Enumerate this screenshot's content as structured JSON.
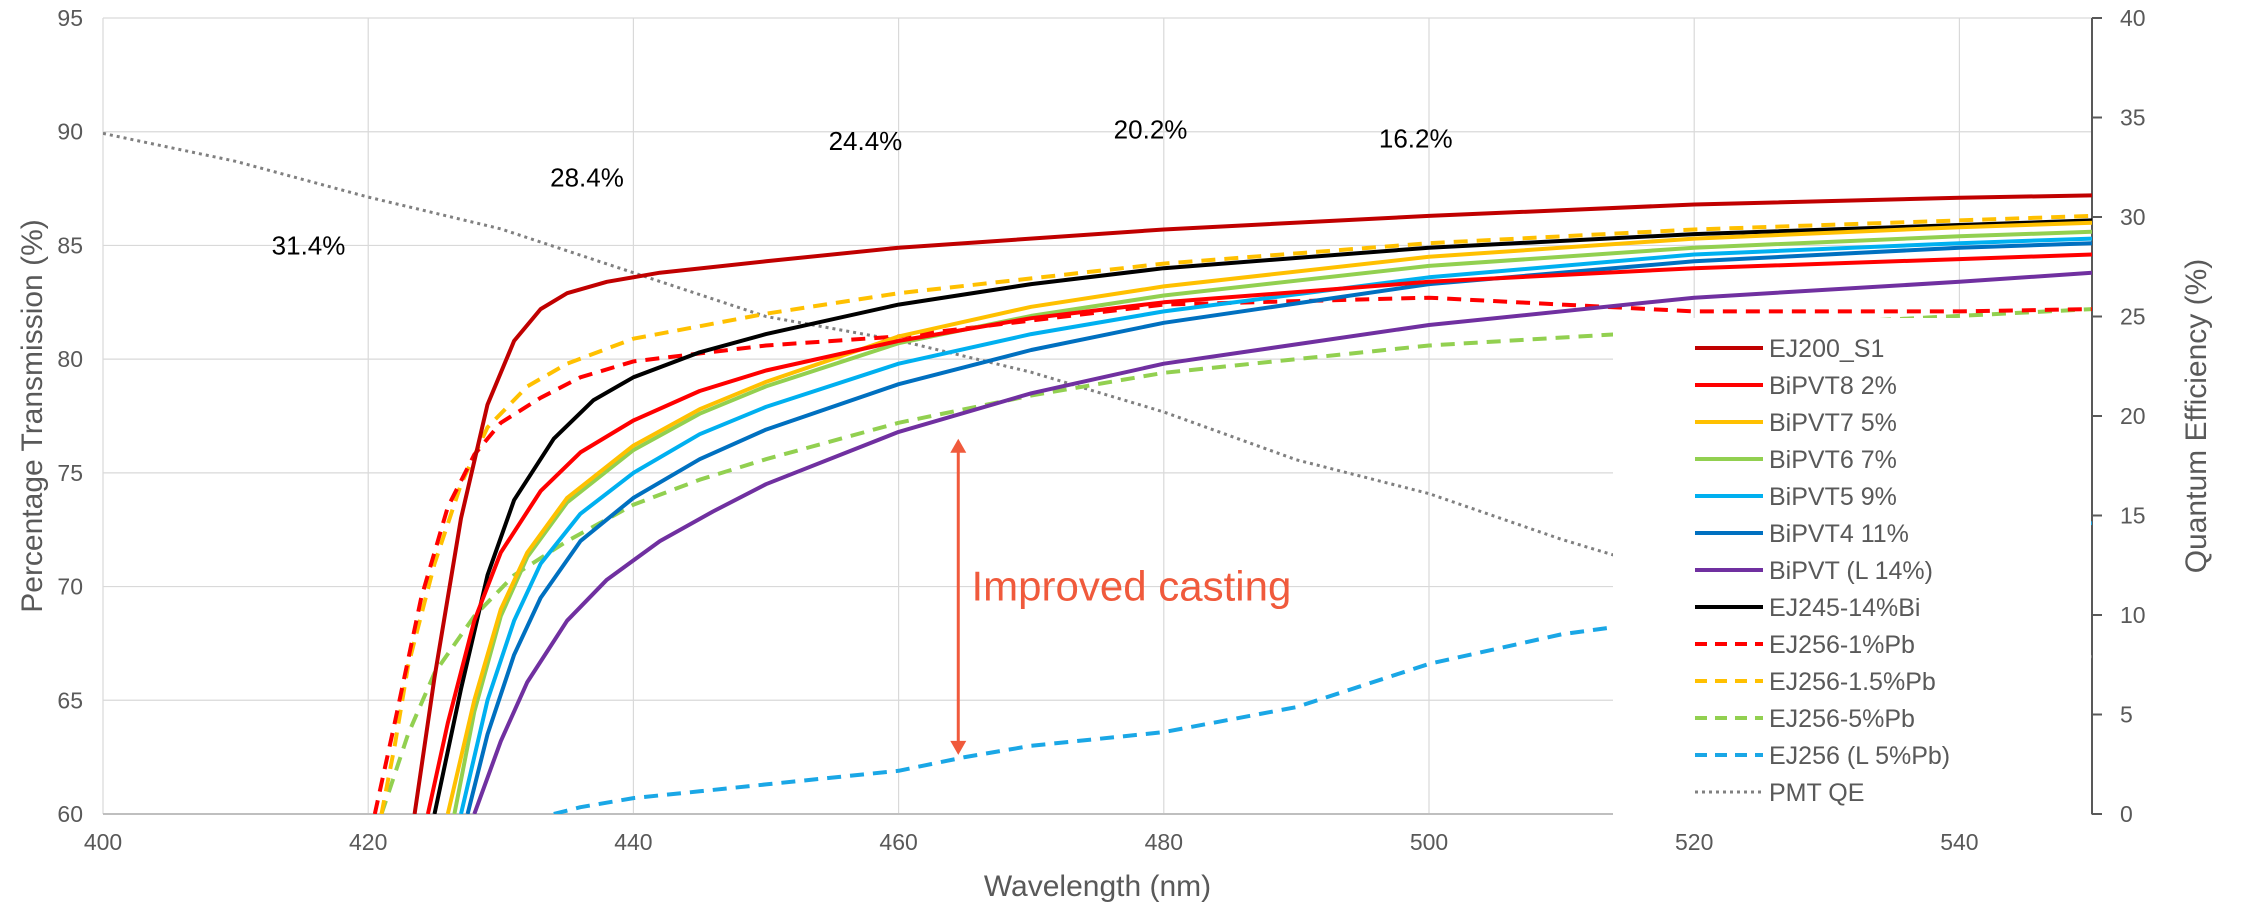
{
  "chart_data": {
    "type": "line",
    "title": "",
    "xlabel": "Wavelength (nm)",
    "ylabel": "Percentage Transmission (%)",
    "y2label": "Quantum Efficiency (%)",
    "xlim": [
      400,
      550
    ],
    "ylim": [
      60,
      95
    ],
    "y2lim": [
      0,
      40
    ],
    "x_ticks": [
      400,
      420,
      440,
      460,
      480,
      500,
      520,
      540
    ],
    "y_ticks": [
      60,
      65,
      70,
      75,
      80,
      85,
      90,
      95
    ],
    "y2_ticks": [
      0,
      5,
      10,
      15,
      20,
      25,
      30,
      35,
      40
    ],
    "grid": true,
    "legend_position": "right",
    "series": [
      {
        "name": "EJ200_S1",
        "color": "#C00000",
        "dash": "solid",
        "axis": "left",
        "points": [
          [
            423.5,
            60
          ],
          [
            425,
            66
          ],
          [
            427,
            73
          ],
          [
            429,
            78
          ],
          [
            431,
            80.8
          ],
          [
            433,
            82.2
          ],
          [
            435,
            82.9
          ],
          [
            438,
            83.4
          ],
          [
            442,
            83.8
          ],
          [
            450,
            84.3
          ],
          [
            460,
            84.9
          ],
          [
            480,
            85.7
          ],
          [
            500,
            86.3
          ],
          [
            520,
            86.8
          ],
          [
            540,
            87.1
          ],
          [
            550,
            87.2
          ]
        ]
      },
      {
        "name": "BiPVT8 2%",
        "color": "#FF0000",
        "dash": "solid",
        "axis": "left",
        "points": [
          [
            424.5,
            60
          ],
          [
            426,
            64
          ],
          [
            428,
            68.5
          ],
          [
            430,
            71.5
          ],
          [
            433,
            74.2
          ],
          [
            436,
            75.9
          ],
          [
            440,
            77.3
          ],
          [
            445,
            78.6
          ],
          [
            450,
            79.5
          ],
          [
            460,
            80.8
          ],
          [
            470,
            81.8
          ],
          [
            480,
            82.5
          ],
          [
            500,
            83.4
          ],
          [
            520,
            84
          ],
          [
            540,
            84.4
          ],
          [
            550,
            84.6
          ]
        ]
      },
      {
        "name": "BiPVT7 5%",
        "color": "#FFC000",
        "dash": "solid",
        "axis": "left",
        "points": [
          [
            426,
            60
          ],
          [
            428,
            65
          ],
          [
            430,
            69
          ],
          [
            432,
            71.5
          ],
          [
            435,
            73.9
          ],
          [
            440,
            76.2
          ],
          [
            445,
            77.8
          ],
          [
            450,
            79
          ],
          [
            460,
            81
          ],
          [
            470,
            82.3
          ],
          [
            480,
            83.2
          ],
          [
            500,
            84.5
          ],
          [
            520,
            85.3
          ],
          [
            540,
            85.8
          ],
          [
            550,
            86
          ]
        ]
      },
      {
        "name": "BiPVT6 7%",
        "color": "#92D050",
        "dash": "solid",
        "axis": "left",
        "points": [
          [
            426.5,
            60
          ],
          [
            428,
            64.5
          ],
          [
            430,
            68.7
          ],
          [
            432,
            71.3
          ],
          [
            435,
            73.7
          ],
          [
            440,
            76
          ],
          [
            445,
            77.6
          ],
          [
            450,
            78.8
          ],
          [
            460,
            80.7
          ],
          [
            470,
            81.9
          ],
          [
            480,
            82.8
          ],
          [
            500,
            84.1
          ],
          [
            520,
            84.9
          ],
          [
            540,
            85.4
          ],
          [
            550,
            85.6
          ]
        ]
      },
      {
        "name": "BiPVT5 9%",
        "color": "#00B0F0",
        "dash": "solid",
        "axis": "left",
        "points": [
          [
            427,
            60
          ],
          [
            429,
            65
          ],
          [
            431,
            68.5
          ],
          [
            433,
            71
          ],
          [
            436,
            73.2
          ],
          [
            440,
            75
          ],
          [
            445,
            76.7
          ],
          [
            450,
            77.9
          ],
          [
            460,
            79.8
          ],
          [
            470,
            81.1
          ],
          [
            480,
            82.1
          ],
          [
            500,
            83.6
          ],
          [
            520,
            84.6
          ],
          [
            540,
            85.1
          ],
          [
            550,
            85.3
          ]
        ]
      },
      {
        "name": "BiPVT4 11%",
        "color": "#0070C0",
        "dash": "solid",
        "axis": "left",
        "points": [
          [
            427.5,
            60
          ],
          [
            429,
            63.5
          ],
          [
            431,
            67
          ],
          [
            433,
            69.5
          ],
          [
            436,
            72
          ],
          [
            440,
            73.9
          ],
          [
            445,
            75.6
          ],
          [
            450,
            76.9
          ],
          [
            460,
            78.9
          ],
          [
            470,
            80.4
          ],
          [
            480,
            81.6
          ],
          [
            500,
            83.3
          ],
          [
            520,
            84.3
          ],
          [
            540,
            84.9
          ],
          [
            550,
            85.1
          ]
        ]
      },
      {
        "name": "BiPVT (L 14%)",
        "color": "#7030A0",
        "dash": "solid",
        "axis": "left",
        "points": [
          [
            428,
            60
          ],
          [
            430,
            63.2
          ],
          [
            432,
            65.8
          ],
          [
            435,
            68.5
          ],
          [
            438,
            70.3
          ],
          [
            442,
            72
          ],
          [
            446,
            73.3
          ],
          [
            450,
            74.5
          ],
          [
            460,
            76.8
          ],
          [
            470,
            78.5
          ],
          [
            480,
            79.8
          ],
          [
            500,
            81.5
          ],
          [
            520,
            82.7
          ],
          [
            540,
            83.4
          ],
          [
            550,
            83.8
          ]
        ]
      },
      {
        "name": "EJ245-14%Bi",
        "color": "#000000",
        "dash": "solid",
        "axis": "left",
        "points": [
          [
            425,
            60
          ],
          [
            427,
            65.5
          ],
          [
            429,
            70.5
          ],
          [
            431,
            73.8
          ],
          [
            434,
            76.5
          ],
          [
            437,
            78.2
          ],
          [
            440,
            79.2
          ],
          [
            445,
            80.3
          ],
          [
            450,
            81.1
          ],
          [
            460,
            82.4
          ],
          [
            470,
            83.3
          ],
          [
            480,
            84
          ],
          [
            500,
            84.9
          ],
          [
            520,
            85.5
          ],
          [
            540,
            85.9
          ],
          [
            550,
            86.1
          ]
        ]
      },
      {
        "name": "EJ256-1%Pb",
        "color": "#FF0000",
        "dash": "dashed",
        "axis": "left",
        "points": [
          [
            420.5,
            60
          ],
          [
            422,
            64
          ],
          [
            424,
            69.5
          ],
          [
            426,
            73.5
          ],
          [
            428,
            75.8
          ],
          [
            430,
            77.2
          ],
          [
            433,
            78.3
          ],
          [
            436,
            79.2
          ],
          [
            440,
            79.9
          ],
          [
            450,
            80.6
          ],
          [
            460,
            81
          ],
          [
            480,
            82.4
          ],
          [
            500,
            82.7
          ],
          [
            520,
            82.1
          ],
          [
            540,
            82.1
          ],
          [
            550,
            82.2
          ]
        ]
      },
      {
        "name": "EJ256-1.5%Pb",
        "color": "#FFC000",
        "dash": "dashed",
        "axis": "left",
        "points": [
          [
            421,
            60
          ],
          [
            422,
            63
          ],
          [
            423,
            66.5
          ],
          [
            425,
            71
          ],
          [
            427,
            74.5
          ],
          [
            429,
            77
          ],
          [
            432,
            78.8
          ],
          [
            435,
            79.8
          ],
          [
            440,
            80.9
          ],
          [
            450,
            82
          ],
          [
            460,
            82.9
          ],
          [
            480,
            84.2
          ],
          [
            500,
            85.1
          ],
          [
            520,
            85.7
          ],
          [
            540,
            86.1
          ],
          [
            550,
            86.3
          ]
        ]
      },
      {
        "name": "EJ256-5%Pb",
        "color": "#92D050",
        "dash": "dashed",
        "axis": "left",
        "points": [
          [
            421,
            60
          ],
          [
            423,
            63.5
          ],
          [
            425,
            66.2
          ],
          [
            428,
            68.7
          ],
          [
            431,
            70.5
          ],
          [
            435,
            72
          ],
          [
            440,
            73.6
          ],
          [
            445,
            74.7
          ],
          [
            450,
            75.6
          ],
          [
            460,
            77.2
          ],
          [
            470,
            78.4
          ],
          [
            480,
            79.4
          ],
          [
            500,
            80.6
          ],
          [
            520,
            81.3
          ],
          [
            540,
            81.9
          ],
          [
            550,
            82.2
          ]
        ]
      },
      {
        "name": "EJ256 (L 5%Pb)",
        "color": "#1AA7E6",
        "dash": "dashed",
        "axis": "left",
        "points": [
          [
            434,
            60
          ],
          [
            436,
            60.3
          ],
          [
            440,
            60.7
          ],
          [
            445,
            61
          ],
          [
            450,
            61.3
          ],
          [
            460,
            61.9
          ],
          [
            465,
            62.5
          ],
          [
            470,
            63
          ],
          [
            480,
            63.6
          ],
          [
            490,
            64.7
          ],
          [
            500,
            66.6
          ],
          [
            510,
            67.9
          ],
          [
            515,
            68.3
          ],
          [
            520,
            68.9
          ],
          [
            530,
            69.9
          ],
          [
            540,
            71.5
          ],
          [
            550,
            72.8
          ]
        ]
      },
      {
        "name": "PMT QE",
        "color": "#808080",
        "dash": "dotted",
        "axis": "right",
        "points": [
          [
            400,
            34.2
          ],
          [
            410,
            32.8
          ],
          [
            420,
            31
          ],
          [
            430,
            29.4
          ],
          [
            440,
            27.2
          ],
          [
            450,
            25
          ],
          [
            460,
            23.8
          ],
          [
            470,
            22.2
          ],
          [
            480,
            20.2
          ],
          [
            490,
            17.8
          ],
          [
            500,
            16.1
          ],
          [
            510,
            13.8
          ],
          [
            520,
            11.8
          ],
          [
            530,
            10.2
          ],
          [
            540,
            9
          ],
          [
            550,
            7.9
          ]
        ]
      }
    ],
    "annotations": [
      {
        "text": "31.4%",
        "x": 415.5,
        "y": 84.6
      },
      {
        "text": "28.4%",
        "x": 436.5,
        "y": 87.6
      },
      {
        "text": "24.4%",
        "x": 457.5,
        "y": 89.2
      },
      {
        "text": "20.2%",
        "x": 479,
        "y": 89.7
      },
      {
        "text": "16.2%",
        "x": 499,
        "y": 89.3
      }
    ],
    "callout": {
      "text": "Improved casting",
      "color": "#F05A3C",
      "arrow_x": 464.5,
      "arrow_y_from": 76.5,
      "arrow_y_to": 62.6,
      "text_x": 465.5,
      "text_y": 70
    }
  }
}
